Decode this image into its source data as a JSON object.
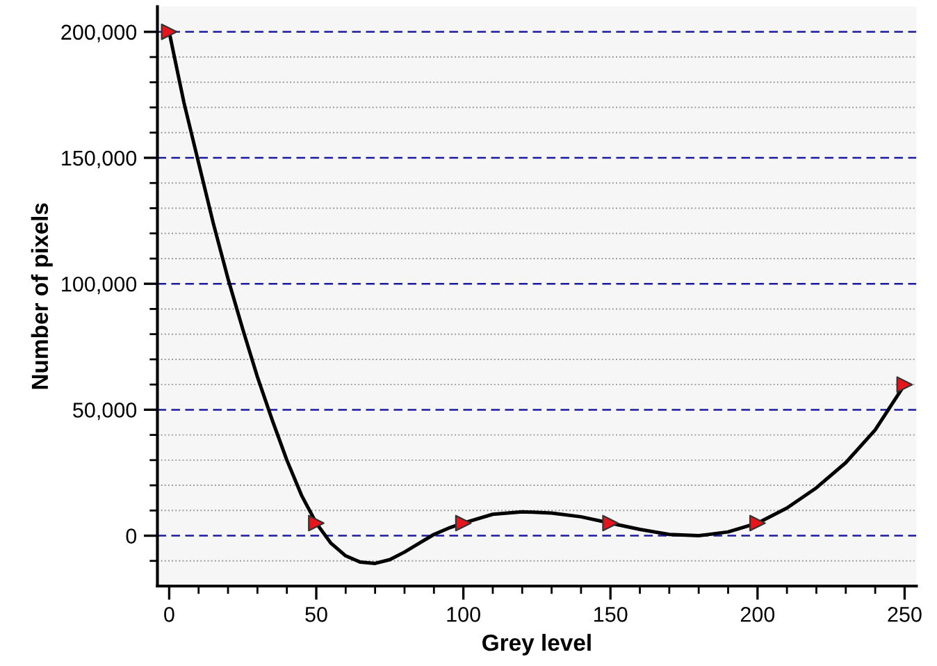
{
  "chart_data": {
    "type": "line",
    "xlabel": "Grey level",
    "ylabel": "Number of pixels",
    "series": [
      {
        "type": "line",
        "color": "#000000",
        "marker": "none",
        "line_style": "solid",
        "x": [
          0,
          5,
          10,
          15,
          20,
          25,
          30,
          35,
          40,
          45,
          50,
          55,
          60,
          65,
          70,
          75,
          80,
          85,
          90,
          95,
          100,
          110,
          120,
          130,
          140,
          150,
          160,
          170,
          180,
          190,
          200,
          210,
          220,
          230,
          240,
          250
        ],
        "values": [
          200000,
          172000,
          148000,
          124000,
          102000,
          82000,
          63000,
          46000,
          30000,
          16000,
          5000,
          -3000,
          -8000,
          -10500,
          -11000,
          -9500,
          -6500,
          -3000,
          500,
          3000,
          5000,
          8500,
          9500,
          9000,
          7500,
          5000,
          2500,
          500,
          0,
          1500,
          5000,
          11000,
          19000,
          29000,
          42000,
          60000
        ]
      },
      {
        "type": "scatter",
        "color": "#e8141c",
        "marker": "triangle",
        "x": [
          0,
          50,
          100,
          150,
          200,
          250
        ],
        "values": [
          200000,
          5000,
          5000,
          5000,
          5000,
          60000
        ]
      }
    ],
    "xlim": [
      -4,
      254
    ],
    "ylim": [
      -20000,
      210000
    ],
    "xticks": [
      0,
      {
        "value": 10,
        "label": null
      },
      {
        "value": 20,
        "label": null
      },
      {
        "value": 30,
        "label": null
      },
      {
        "value": 40,
        "label": null
      },
      50,
      {
        "value": 60,
        "label": null
      },
      {
        "value": 70,
        "label": null
      },
      {
        "value": 80,
        "label": null
      },
      {
        "value": 90,
        "label": null
      },
      100,
      {
        "value": 110,
        "label": null
      },
      {
        "value": 120,
        "label": null
      },
      {
        "value": 130,
        "label": null
      },
      {
        "value": 140,
        "label": null
      },
      150,
      {
        "value": 160,
        "label": null
      },
      {
        "value": 170,
        "label": null
      },
      {
        "value": 180,
        "label": null
      },
      {
        "value": 190,
        "label": null
      },
      200,
      {
        "value": 210,
        "label": null
      },
      {
        "value": 220,
        "label": null
      },
      {
        "value": 230,
        "label": null
      },
      {
        "value": 240,
        "label": null
      },
      250
    ],
    "yticks": [
      {
        "value": -10000,
        "label": null
      },
      {
        "value": 0,
        "label": "0"
      },
      {
        "value": 10000,
        "label": null
      },
      {
        "value": 20000,
        "label": null
      },
      {
        "value": 30000,
        "label": null
      },
      {
        "value": 40000,
        "label": null
      },
      {
        "value": 50000,
        "label": "50,000"
      },
      {
        "value": 60000,
        "label": null
      },
      {
        "value": 70000,
        "label": null
      },
      {
        "value": 80000,
        "label": null
      },
      {
        "value": 90000,
        "label": null
      },
      {
        "value": 100000,
        "label": "100,000"
      },
      {
        "value": 110000,
        "label": null
      },
      {
        "value": 120000,
        "label": null
      },
      {
        "value": 130000,
        "label": null
      },
      {
        "value": 140000,
        "label": null
      },
      {
        "value": 150000,
        "label": "150,000"
      },
      {
        "value": 160000,
        "label": null
      },
      {
        "value": 170000,
        "label": null
      },
      {
        "value": 180000,
        "label": null
      },
      {
        "value": 190000,
        "label": null
      },
      {
        "value": 200000,
        "label": "200,000"
      }
    ],
    "grid": "y"
  }
}
